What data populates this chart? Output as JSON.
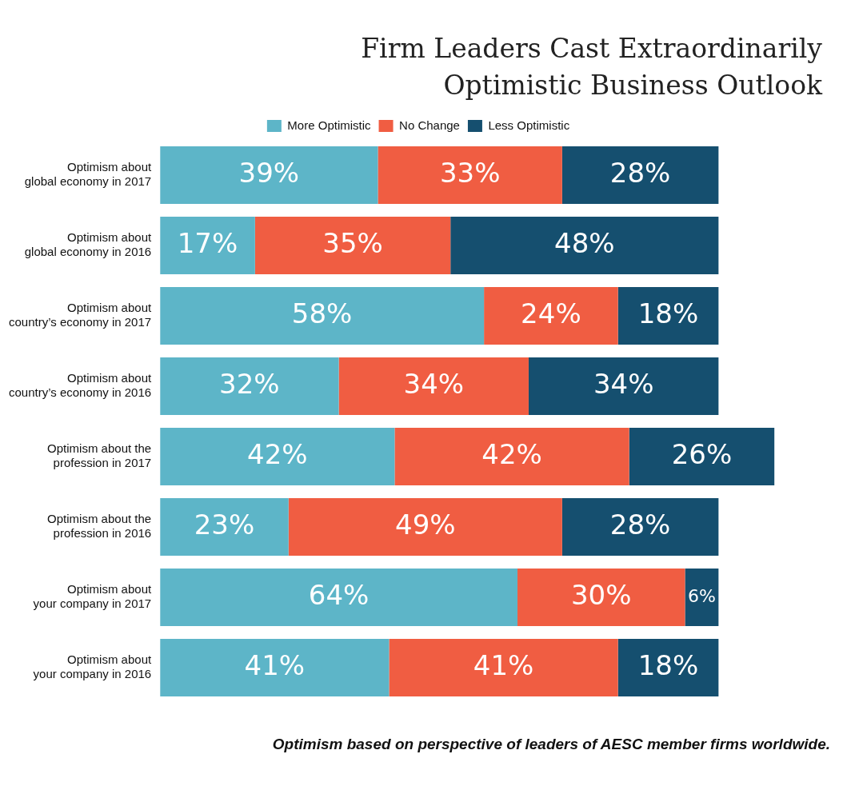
{
  "chart_data": {
    "type": "bar",
    "orientation": "horizontal",
    "stacked": true,
    "title": "Firm Leaders Cast Extraordinarily Optimistic Business Outlook",
    "categories": [
      "Optimism about global economy in 2017",
      "Optimism about global economy in 2016",
      "Optimism about country’s economy in 2017",
      "Optimism about country’s economy in 2016",
      "Optimism about the profession in 2017",
      "Optimism about the profession in 2016",
      "Optimism about your company in 2017",
      "Optimism about your company in 2016"
    ],
    "series": [
      {
        "name": "More Optimistic",
        "color": "#5db5c8",
        "values": [
          39,
          17,
          58,
          32,
          42,
          23,
          64,
          41
        ],
        "value_labels": [
          "39%",
          "17%",
          "58%",
          "32%",
          "42%",
          "23%",
          "64%",
          "41%"
        ]
      },
      {
        "name": "No Change",
        "color": "#f05d42",
        "values": [
          33,
          35,
          24,
          34,
          42,
          49,
          30,
          41
        ],
        "value_labels": [
          "33%",
          "35%",
          "24%",
          "34%",
          "42%",
          "49%",
          "30%",
          "41%"
        ]
      },
      {
        "name": "Less Optimistic",
        "color": "#154f6f",
        "values": [
          28,
          48,
          18,
          34,
          26,
          28,
          6,
          18
        ],
        "value_labels": [
          "28%",
          "48%",
          "18%",
          "34%",
          "26%",
          "28%",
          "6%",
          "18%"
        ]
      }
    ],
    "legend": "top",
    "tick_labels": "y",
    "grid": false,
    "annotations": [
      "Optimism based on perspective of leaders of AESC member firms worldwide."
    ]
  }
}
